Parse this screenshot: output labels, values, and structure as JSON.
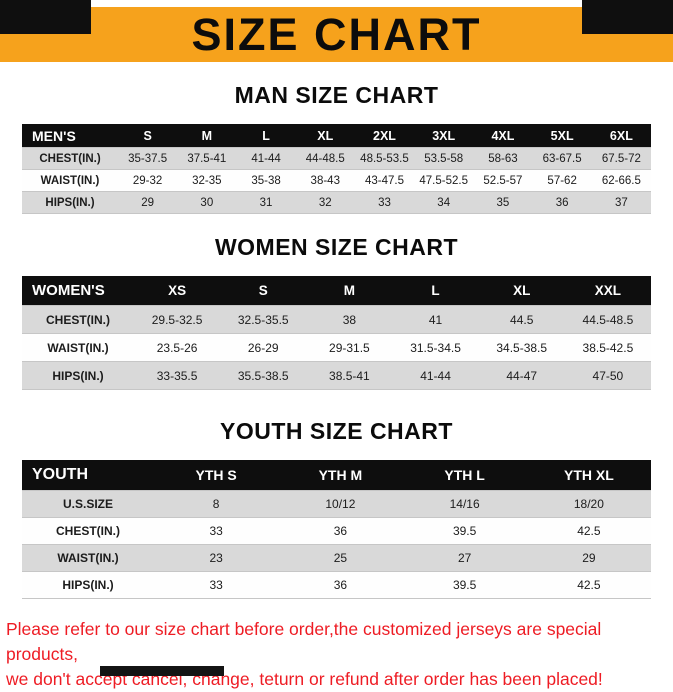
{
  "banner": {
    "title": "SIZE CHART"
  },
  "colors": {
    "banner_bg": "#F6A21C",
    "table_header_bg": "#0E0E0E",
    "row_stripe": "#D9D9D9",
    "notice_red": "#EE1C24"
  },
  "sections": [
    {
      "heading": "MAN SIZE CHART",
      "table": {
        "header": [
          "MEN'S",
          "S",
          "M",
          "L",
          "XL",
          "2XL",
          "3XL",
          "4XL",
          "5XL",
          "6XL"
        ],
        "rows": [
          [
            "CHEST(IN.)",
            "35-37.5",
            "37.5-41",
            "41-44",
            "44-48.5",
            "48.5-53.5",
            "53.5-58",
            "58-63",
            "63-67.5",
            "67.5-72"
          ],
          [
            "WAIST(IN.)",
            "29-32",
            "32-35",
            "35-38",
            "38-43",
            "43-47.5",
            "47.5-52.5",
            "52.5-57",
            "57-62",
            "62-66.5"
          ],
          [
            "HIPS(IN.)",
            "29",
            "30",
            "31",
            "32",
            "33",
            "34",
            "35",
            "36",
            "37"
          ]
        ]
      }
    },
    {
      "heading": "WOMEN SIZE CHART",
      "table": {
        "header": [
          "WOMEN'S",
          "XS",
          "S",
          "M",
          "L",
          "XL",
          "XXL"
        ],
        "rows": [
          [
            "CHEST(IN.)",
            "29.5-32.5",
            "32.5-35.5",
            "38",
            "41",
            "44.5",
            "44.5-48.5"
          ],
          [
            "WAIST(IN.)",
            "23.5-26",
            "26-29",
            "29-31.5",
            "31.5-34.5",
            "34.5-38.5",
            "38.5-42.5"
          ],
          [
            "HIPS(IN.)",
            "33-35.5",
            "35.5-38.5",
            "38.5-41",
            "41-44",
            "44-47",
            "47-50"
          ]
        ]
      }
    },
    {
      "heading": "YOUTH SIZE CHART",
      "table": {
        "header": [
          "YOUTH",
          "YTH S",
          "YTH M",
          "YTH L",
          "YTH XL"
        ],
        "rows": [
          [
            "U.S.SIZE",
            "8",
            "10/12",
            "14/16",
            "18/20"
          ],
          [
            "CHEST(IN.)",
            "33",
            "36",
            "39.5",
            "42.5"
          ],
          [
            "WAIST(IN.)",
            "23",
            "25",
            "27",
            "29"
          ],
          [
            "HIPS(IN.)",
            "33",
            "36",
            "39.5",
            "42.5"
          ]
        ]
      }
    }
  ],
  "footer": {
    "lines": [
      "Please refer to our size chart before order,the customized jerseys are special products,",
      "we don't accept cancel, change, teturn or refund after order has been placed!"
    ]
  }
}
